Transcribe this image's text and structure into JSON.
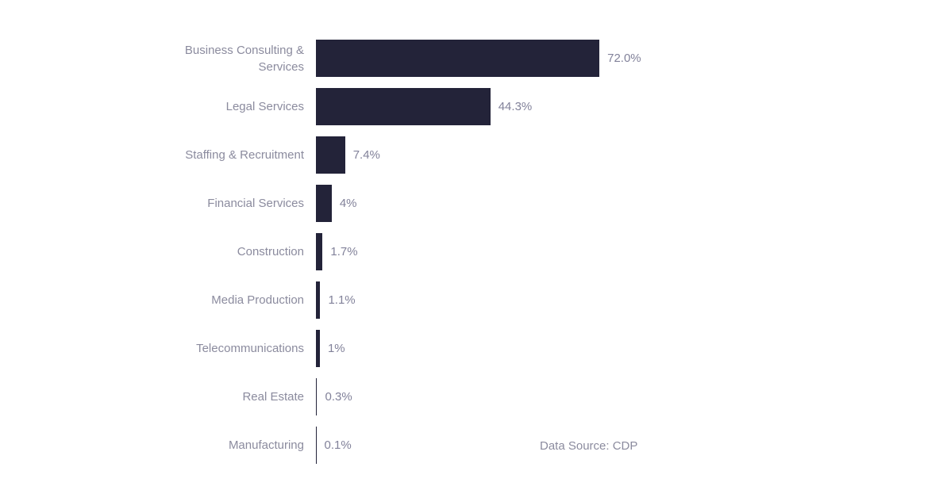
{
  "chart_data": {
    "type": "bar",
    "orientation": "horizontal",
    "title": "",
    "xlabel": "",
    "ylabel": "",
    "xlim": [
      0,
      100
    ],
    "grid": false,
    "legend": "none",
    "background_color": "#ffffff",
    "bar_color": "#232339",
    "label_color": "#8b8b9e",
    "categories": [
      "Business Consulting & Services",
      "Legal Services",
      "Staffing & Recruitment",
      "Financial Services",
      "Construction",
      "Media Production",
      "Telecommunications",
      "Real Estate",
      "Manufacturing"
    ],
    "values": [
      72.0,
      44.3,
      7.4,
      4,
      1.7,
      1.1,
      1,
      0.3,
      0.1
    ],
    "value_labels": [
      "72.0%",
      "44.3%",
      "7.4%",
      "4%",
      "1.7%",
      "1.1%",
      "1%",
      "0.3%",
      "0.1%"
    ],
    "source_note": "Data Source: CDP"
  }
}
